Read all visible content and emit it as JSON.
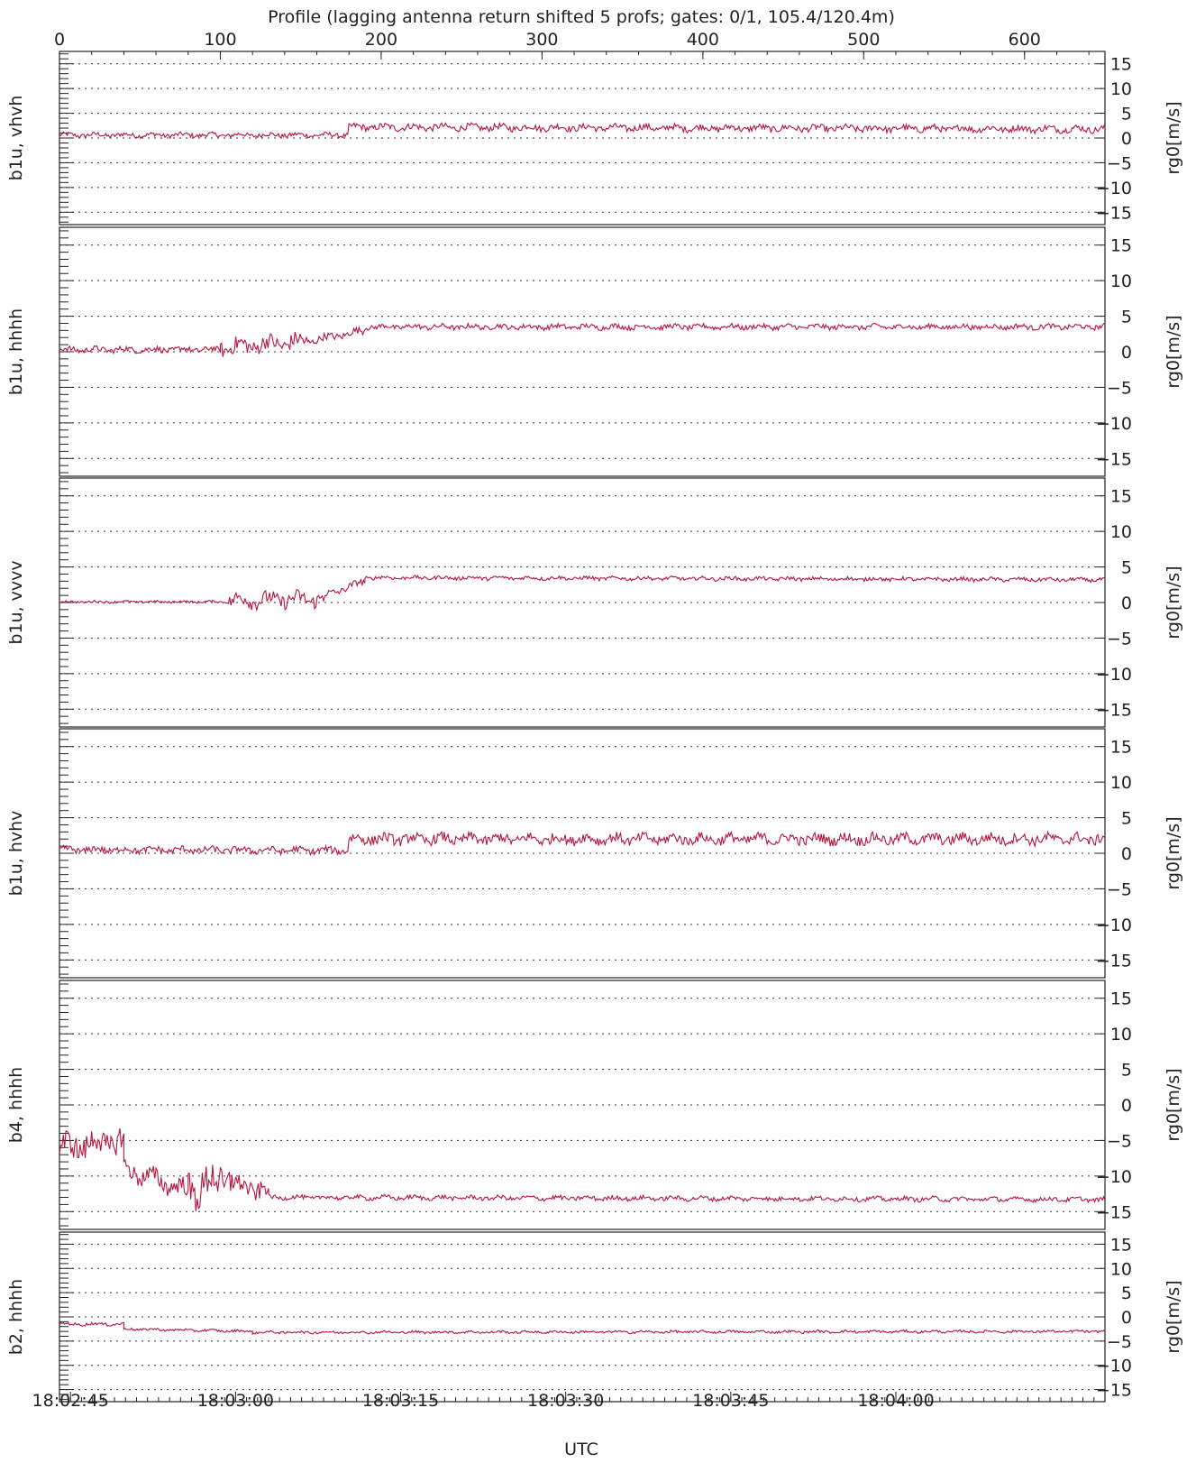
{
  "title": "Profile (lagging antenna return shifted 5 profs; gates: 0/1, 105.4/120.4m)",
  "top_axis": {
    "range": [
      0,
      650
    ],
    "ticks": [
      "0",
      "100",
      "200",
      "300",
      "400",
      "500",
      "600"
    ]
  },
  "x_axis": {
    "label": "UTC",
    "range_seconds": [
      164,
      259
    ],
    "ticks": [
      {
        "t": 165,
        "label": "18:02:45"
      },
      {
        "t": 180,
        "label": "18:03:00"
      },
      {
        "t": 195,
        "label": "18:03:15"
      },
      {
        "t": 210,
        "label": "18:03:30"
      },
      {
        "t": 225,
        "label": "18:03:45"
      },
      {
        "t": 240,
        "label": "18:04:00"
      }
    ]
  },
  "y_axis": {
    "label": "rg0[m/s]",
    "range": [
      -17.5,
      17.5
    ],
    "ticks": [
      15,
      10,
      5,
      0,
      -5,
      -10,
      -15
    ],
    "tick_labels": [
      "15",
      "10",
      "5",
      "0",
      "−5",
      "−10",
      "−15"
    ],
    "gridlines": [
      15,
      10,
      5,
      0,
      -5,
      -10,
      -15
    ],
    "grid_style": "dotted"
  },
  "colors": {
    "series": "#b5163c",
    "axes": "#222222",
    "grid": "#333333"
  },
  "chart_data": [
    {
      "type": "line",
      "panel_label": "b1u, vhvh",
      "x_range": [
        0,
        650
      ],
      "ylim": [
        -17.5,
        17.5
      ],
      "segments": [
        [
          0,
          0.6,
          180,
          0.6,
          0.9
        ],
        [
          180,
          2.2,
          650,
          1.8,
          1.3
        ]
      ]
    },
    {
      "type": "line",
      "panel_label": "b1u, hhhh",
      "x_range": [
        0,
        650
      ],
      "ylim": [
        -17.5,
        17.5
      ],
      "segments": [
        [
          0,
          0.3,
          100,
          0.3,
          0.8
        ],
        [
          100,
          0.6,
          155,
          1.5,
          2.2
        ],
        [
          155,
          1.5,
          190,
          3.0,
          1.0
        ],
        [
          190,
          3.5,
          650,
          3.5,
          0.7
        ]
      ]
    },
    {
      "type": "line",
      "panel_label": "b1u, vvvv",
      "x_range": [
        0,
        650
      ],
      "ylim": [
        -17.5,
        17.5
      ],
      "segments": [
        [
          0,
          0.1,
          105,
          0.1,
          0.3
        ],
        [
          105,
          0.3,
          165,
          0.5,
          2.0
        ],
        [
          165,
          1.0,
          190,
          3.0,
          0.9
        ],
        [
          190,
          3.5,
          650,
          3.2,
          0.5
        ]
      ]
    },
    {
      "type": "line",
      "panel_label": "b1u, hvhv",
      "x_range": [
        0,
        650
      ],
      "ylim": [
        -17.5,
        17.5
      ],
      "segments": [
        [
          0,
          0.5,
          180,
          0.4,
          0.9
        ],
        [
          180,
          2.0,
          650,
          2.0,
          1.4
        ]
      ]
    },
    {
      "type": "line",
      "panel_label": "b4, hhhh",
      "x_range": [
        0,
        650
      ],
      "ylim": [
        -17.5,
        17.5
      ],
      "segments": [
        [
          0,
          -6.0,
          40,
          -5.0,
          3.5
        ],
        [
          40,
          -9.0,
          80,
          -12.0,
          2.5
        ],
        [
          80,
          -12.0,
          110,
          -10.0,
          5.0
        ],
        [
          110,
          -11.5,
          130,
          -12.0,
          2.5
        ],
        [
          130,
          -13.0,
          650,
          -13.3,
          0.6
        ]
      ]
    },
    {
      "type": "line",
      "panel_label": "b2, hhhh",
      "x_range": [
        0,
        650
      ],
      "ylim": [
        -17.5,
        17.5
      ],
      "segments": [
        [
          0,
          -1.5,
          40,
          -1.5,
          0.6
        ],
        [
          40,
          -2.5,
          120,
          -3.0,
          0.5
        ],
        [
          120,
          -3.2,
          650,
          -3.0,
          0.5
        ]
      ]
    }
  ]
}
